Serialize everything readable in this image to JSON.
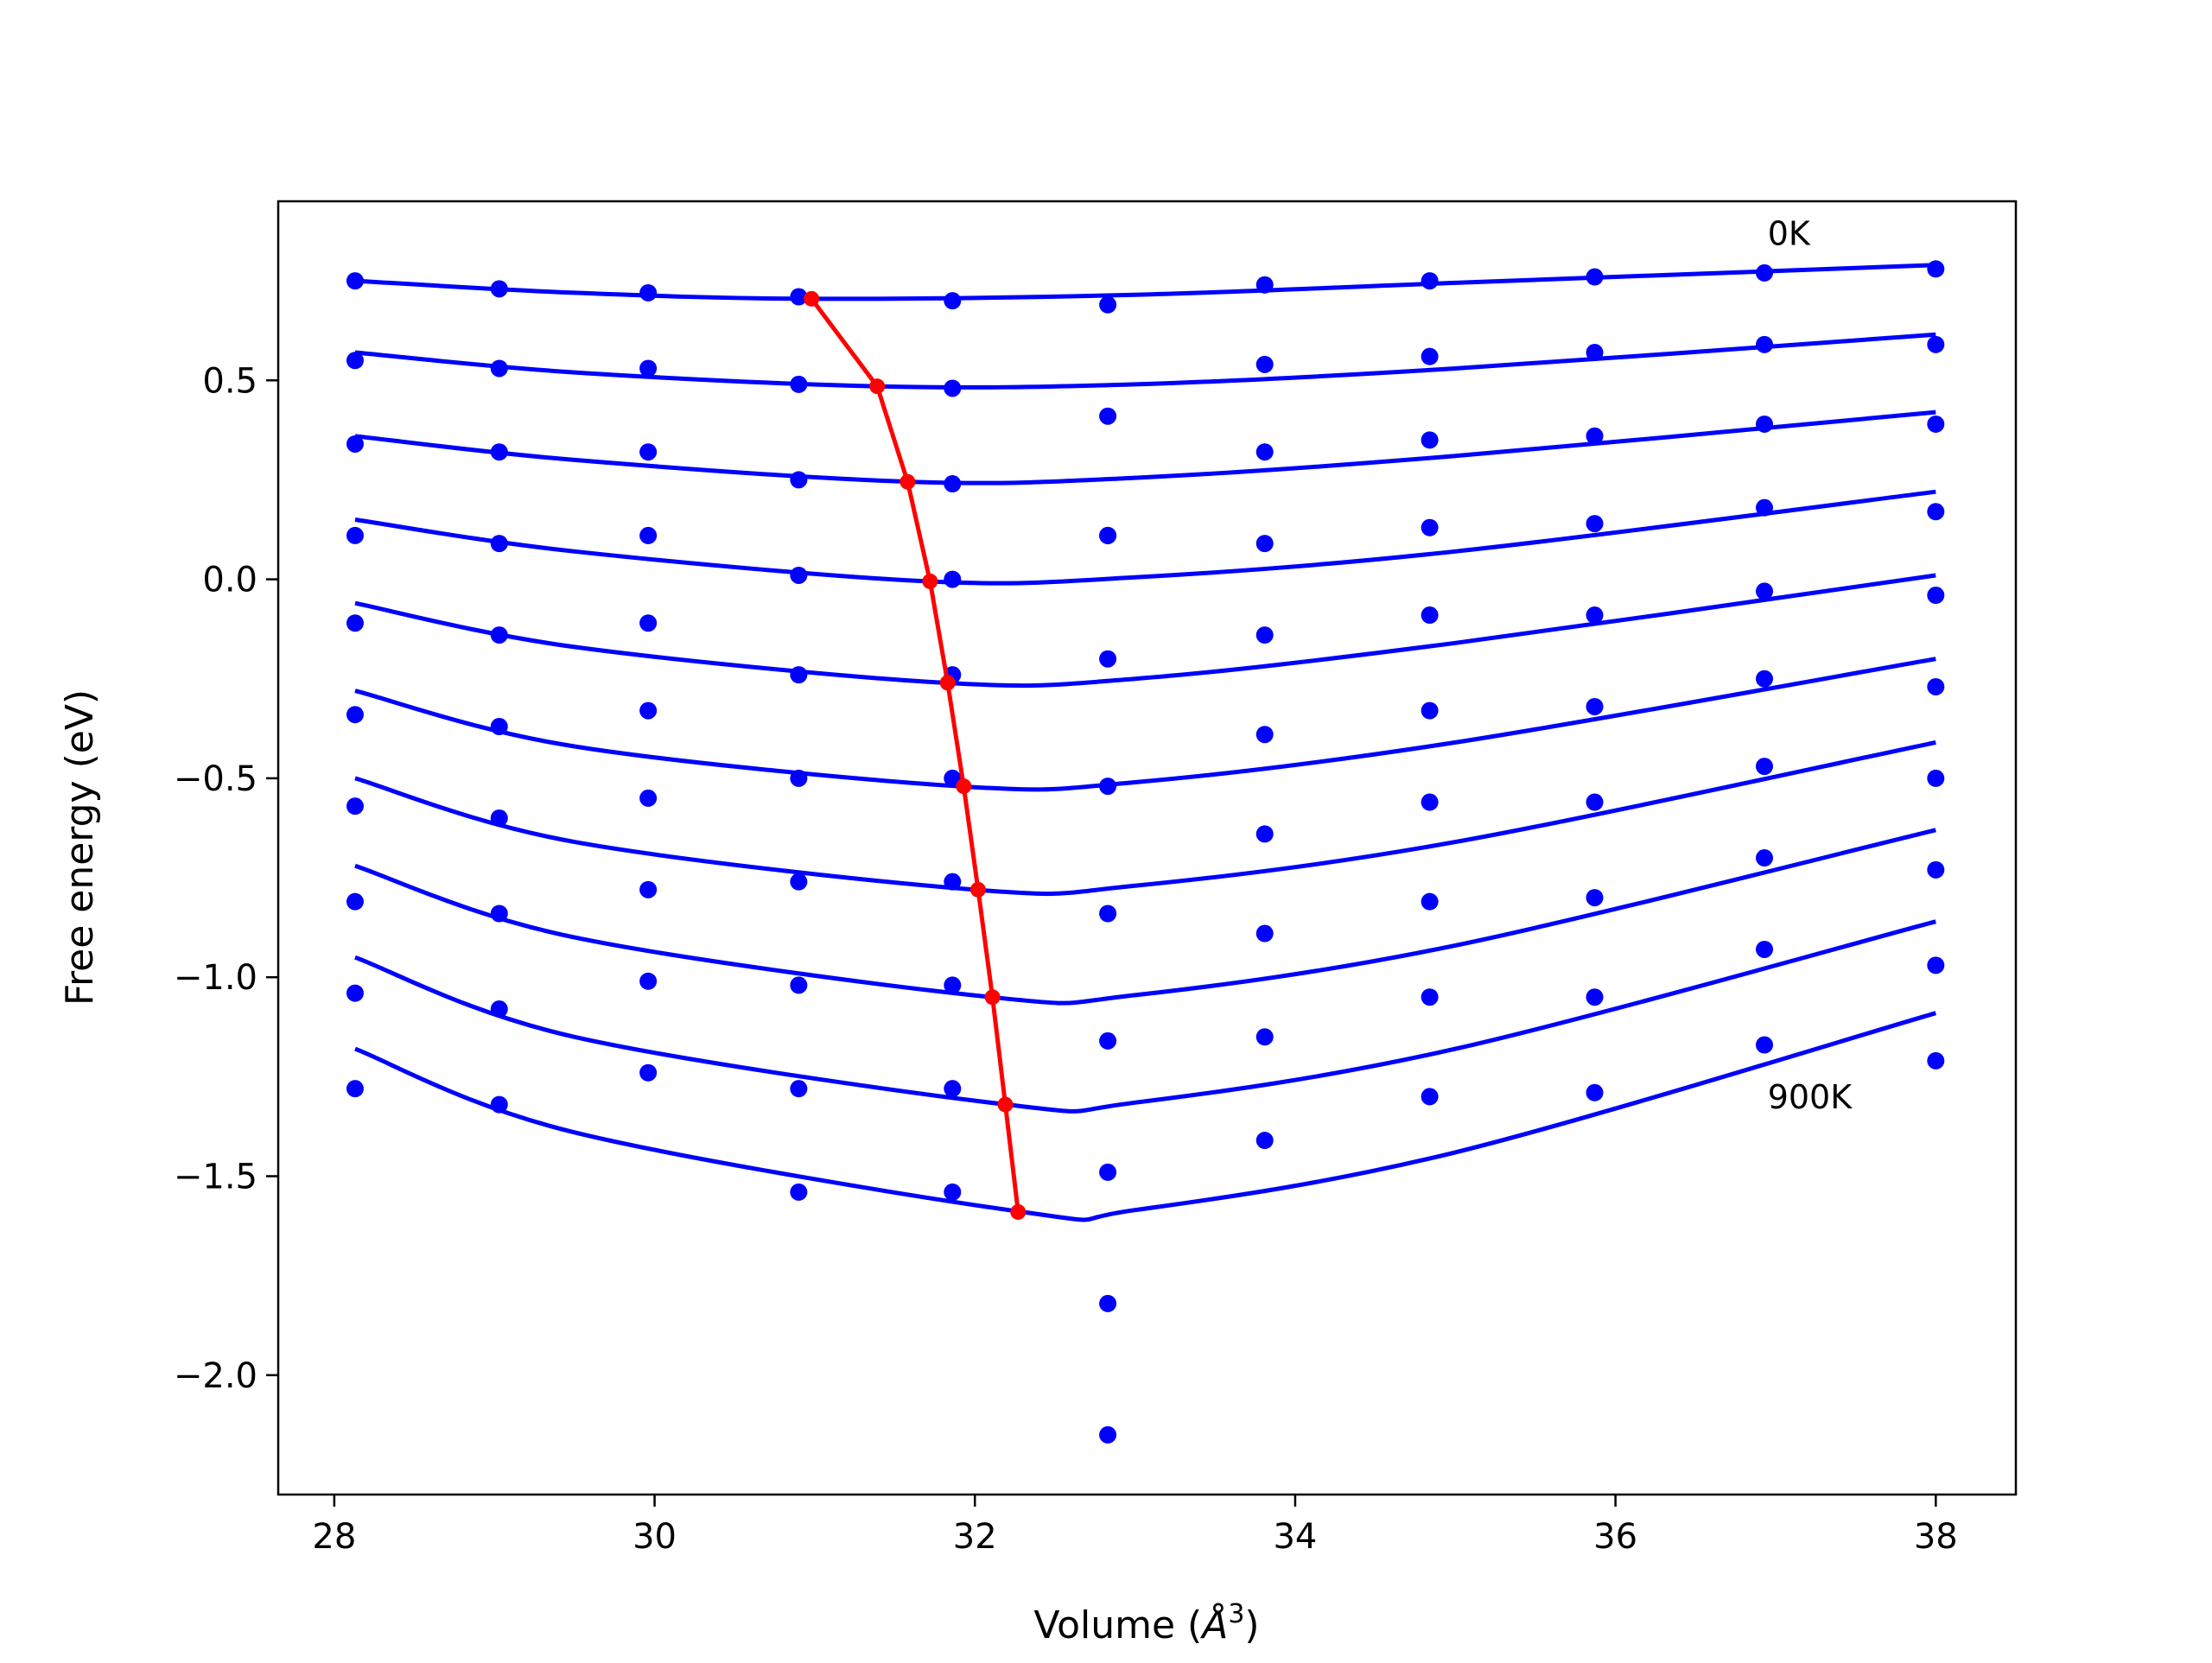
{
  "chart_data": {
    "type": "line",
    "title": "",
    "xlabel": "Volume (",
    "xlabel_unit": "Å",
    "xlabel_power": "3",
    "xlabel_close": ")",
    "ylabel": "Free energy (eV)",
    "xlim": [
      27.65,
      38.5
    ],
    "ylim": [
      -2.3,
      0.95
    ],
    "xticks": [
      28,
      30,
      32,
      34,
      36,
      38
    ],
    "xtick_labels": [
      "28",
      "30",
      "32",
      "34",
      "36",
      "38"
    ],
    "yticks": [
      0.5,
      0.0,
      -0.5,
      -1.0,
      -1.5,
      -2.0
    ],
    "ytick_labels": [
      "0.5",
      "0.0",
      "−0.5",
      "−1.0",
      "−1.5",
      "−2.0"
    ],
    "grid": false,
    "legend": "none",
    "colors": {
      "fit": "#0000ff",
      "points": "#0000ff",
      "minimum_path": "#ff0000",
      "axes": "#000000"
    },
    "annotations": [
      {
        "text": "0K",
        "x": 36.95,
        "y": 0.84
      },
      {
        "text": "900K",
        "x": 36.95,
        "y": -1.33
      }
    ],
    "volumes": [
      28.13,
      29.03,
      29.96,
      30.9,
      31.86,
      32.83,
      33.81,
      34.84,
      35.87,
      36.93,
      38.0
    ],
    "series": [
      {
        "points": [
          0.75,
          0.73,
          0.72,
          0.71,
          0.7,
          0.69,
          0.74,
          0.75,
          0.76,
          0.77,
          0.78
        ],
        "fit": [
          [
            28.13,
            0.75
          ],
          [
            29.5,
            0.72
          ],
          [
            31.0,
            0.705
          ],
          [
            33.0,
            0.715
          ],
          [
            35.0,
            0.745
          ],
          [
            38.0,
            0.79
          ]
        ]
      },
      {
        "points": [
          0.55,
          0.53,
          0.53,
          0.49,
          0.48,
          0.41,
          0.54,
          0.56,
          0.57,
          0.59,
          0.59
        ],
        "fit": [
          [
            28.13,
            0.57
          ],
          [
            29.5,
            0.52
          ],
          [
            31.4,
            0.485
          ],
          [
            33.0,
            0.49
          ],
          [
            35.0,
            0.53
          ],
          [
            38.0,
            0.615
          ]
        ]
      },
      {
        "points": [
          0.34,
          0.32,
          0.32,
          0.25,
          0.24,
          0.11,
          0.32,
          0.35,
          0.36,
          0.39,
          0.39
        ],
        "fit": [
          [
            28.13,
            0.36
          ],
          [
            29.5,
            0.3
          ],
          [
            31.6,
            0.245
          ],
          [
            33.0,
            0.255
          ],
          [
            35.0,
            0.31
          ],
          [
            38.0,
            0.42
          ]
        ]
      },
      {
        "points": [
          0.11,
          0.09,
          0.11,
          0.01,
          0.0,
          0.11,
          0.09,
          0.13,
          0.14,
          0.18,
          0.17
        ],
        "fit": [
          [
            28.13,
            0.15
          ],
          [
            29.5,
            0.07
          ],
          [
            31.7,
            -0.005
          ],
          [
            33.0,
            0.005
          ],
          [
            35.0,
            0.07
          ],
          [
            38.0,
            0.22
          ]
        ]
      },
      {
        "points": [
          -0.11,
          -0.14,
          -0.11,
          -0.24,
          -0.24,
          -0.2,
          -0.14,
          -0.09,
          -0.09,
          -0.03,
          -0.04
        ],
        "fit": [
          [
            28.13,
            -0.06
          ],
          [
            29.5,
            -0.17
          ],
          [
            31.8,
            -0.26
          ],
          [
            33.0,
            -0.25
          ],
          [
            35.0,
            -0.16
          ],
          [
            38.0,
            0.01
          ]
        ]
      },
      {
        "points": [
          -0.34,
          -0.37,
          -0.33,
          -0.5,
          -0.5,
          -0.52,
          -0.39,
          -0.33,
          -0.32,
          -0.25,
          -0.27
        ],
        "fit": [
          [
            28.13,
            -0.28
          ],
          [
            29.5,
            -0.42
          ],
          [
            31.9,
            -0.52
          ],
          [
            33.0,
            -0.51
          ],
          [
            35.0,
            -0.41
          ],
          [
            38.0,
            -0.2
          ]
        ]
      },
      {
        "points": [
          -0.57,
          -0.6,
          -0.55,
          -0.76,
          -0.76,
          -0.84,
          -0.64,
          -0.56,
          -0.56,
          -0.47,
          -0.5
        ],
        "fit": [
          [
            28.13,
            -0.5
          ],
          [
            29.5,
            -0.66
          ],
          [
            32.0,
            -0.78
          ],
          [
            33.0,
            -0.77
          ],
          [
            35.0,
            -0.66
          ],
          [
            38.0,
            -0.41
          ]
        ]
      },
      {
        "points": [
          -0.81,
          -0.84,
          -0.78,
          -1.02,
          -1.02,
          -1.16,
          -0.89,
          -0.81,
          -0.8,
          -0.7,
          -0.73
        ],
        "fit": [
          [
            28.13,
            -0.72
          ],
          [
            29.5,
            -0.9
          ],
          [
            32.1,
            -1.05
          ],
          [
            33.0,
            -1.045
          ],
          [
            35.0,
            -0.92
          ],
          [
            38.0,
            -0.63
          ]
        ]
      },
      {
        "points": [
          -1.04,
          -1.08,
          -1.01,
          -1.28,
          -1.28,
          -1.49,
          -1.15,
          -1.05,
          -1.05,
          -0.93,
          -0.97
        ],
        "fit": [
          [
            28.13,
            -0.95
          ],
          [
            29.5,
            -1.15
          ],
          [
            32.2,
            -1.32
          ],
          [
            33.0,
            -1.315
          ],
          [
            35.0,
            -1.18
          ],
          [
            38.0,
            -0.86
          ]
        ]
      },
      {
        "points": [
          -1.28,
          -1.32,
          -1.24,
          -1.54,
          -1.54,
          -1.82,
          -1.41,
          -1.3,
          -1.29,
          -1.17,
          -1.21
        ],
        "fit": [
          [
            28.13,
            -1.18
          ],
          [
            29.5,
            -1.39
          ],
          [
            32.3,
            -1.59
          ],
          [
            33.0,
            -1.585
          ],
          [
            35.0,
            -1.44
          ],
          [
            38.0,
            -1.09
          ]
        ]
      }
    ],
    "extra_points": [
      [
        32.83,
        -2.15
      ]
    ],
    "minimum_path": {
      "x": [
        30.98,
        31.39,
        31.58,
        31.72,
        31.83,
        31.93,
        32.02,
        32.11,
        32.19,
        32.27
      ],
      "y": [
        0.705,
        0.485,
        0.245,
        -0.005,
        -0.26,
        -0.52,
        -0.78,
        -1.05,
        -1.32,
        -1.59
      ]
    }
  }
}
